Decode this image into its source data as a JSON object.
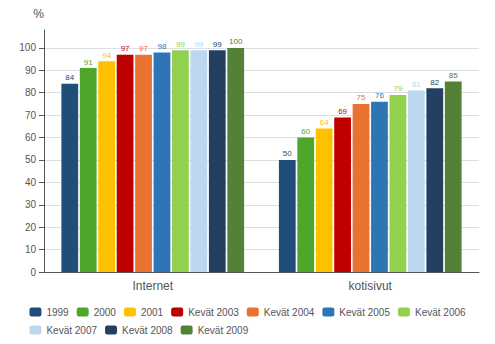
{
  "chart_data": {
    "type": "bar",
    "categories": [
      "Internet",
      "kotisivut"
    ],
    "series": [
      {
        "name": "1999",
        "color": "#1F4E79",
        "values": [
          84,
          50
        ]
      },
      {
        "name": "2000",
        "color": "#4EA72A",
        "values": [
          91,
          60
        ]
      },
      {
        "name": "2001",
        "color": "#FFC000",
        "values": [
          94,
          64
        ]
      },
      {
        "name": "Kevät 2003",
        "color": "#C00000",
        "values": [
          97,
          69
        ]
      },
      {
        "name": "Kevät 2004",
        "color": "#E97132",
        "values": [
          97,
          75
        ]
      },
      {
        "name": "Kevät 2005",
        "color": "#2E75B6",
        "values": [
          98,
          76
        ]
      },
      {
        "name": "Kevät 2006",
        "color": "#92D050",
        "values": [
          99,
          79
        ]
      },
      {
        "name": "Kevät 2007",
        "color": "#BDD7EE",
        "values": [
          99,
          81
        ]
      },
      {
        "name": "Kevät 2008",
        "color": "#243F60",
        "values": [
          99,
          82
        ]
      },
      {
        "name": "Kevät 2009",
        "color": "#538135",
        "values": [
          100,
          85
        ]
      }
    ],
    "ylabel": "%",
    "ylim": [
      0,
      108
    ],
    "yticks": [
      0,
      10,
      20,
      30,
      40,
      50,
      60,
      70,
      80,
      90,
      100
    ],
    "grid": true,
    "legend": "bottom",
    "data_labels": true
  }
}
